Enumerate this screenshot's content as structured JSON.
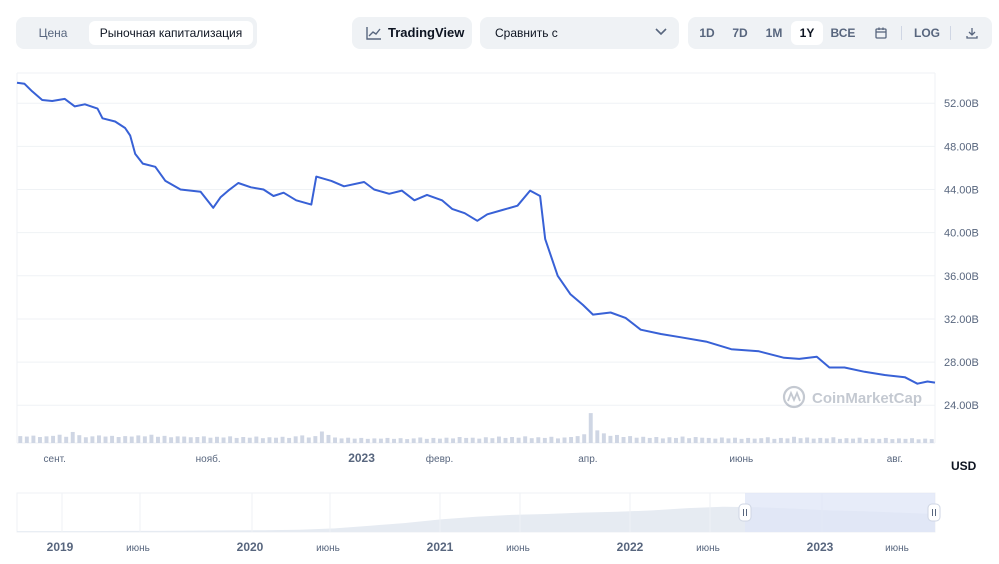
{
  "tabs": {
    "price": "Цена",
    "market_cap": "Рыночная капитализация"
  },
  "toolbar": {
    "tradingview": "TradingView",
    "compare": "Сравнить с",
    "ranges": [
      "1D",
      "7D",
      "1M",
      "1Y",
      "ВСЕ"
    ],
    "active_range": "1Y",
    "log": "LOG"
  },
  "currency": "USD",
  "watermark": "CoinMarketCap",
  "colors": {
    "line": "#3861d6",
    "volume": "#cfd6e4",
    "navigator_fill": "#e6ebf2",
    "navigator_selection": "#dfe6f7"
  },
  "chart_data": {
    "type": "line",
    "title": "",
    "y_unit": "B",
    "y_ticks": [
      "24.00B",
      "28.00B",
      "32.00B",
      "36.00B",
      "40.00B",
      "44.00B",
      "48.00B",
      "52.00B"
    ],
    "ylim": [
      20,
      55
    ],
    "x_ticks": [
      "сент.",
      "нояб.",
      "2023",
      "февр.",
      "апр.",
      "июнь",
      "авг."
    ],
    "x_range": [
      "2022-08-17",
      "2023-08-17"
    ],
    "y_axis_side": "right",
    "grid": true,
    "series": [
      {
        "values": [
          [
            "2022-08-17",
            53.9
          ],
          [
            "2022-08-20",
            53.8
          ],
          [
            "2022-08-23",
            53.1
          ],
          [
            "2022-08-27",
            52.3
          ],
          [
            "2022-08-31",
            52.2
          ],
          [
            "2022-09-05",
            52.4
          ],
          [
            "2022-09-09",
            51.7
          ],
          [
            "2022-09-13",
            51.9
          ],
          [
            "2022-09-18",
            51.5
          ],
          [
            "2022-09-20",
            50.6
          ],
          [
            "2022-09-25",
            50.3
          ],
          [
            "2022-09-29",
            49.7
          ],
          [
            "2022-10-01",
            49.0
          ],
          [
            "2022-10-03",
            47.3
          ],
          [
            "2022-10-06",
            46.4
          ],
          [
            "2022-10-11",
            46.1
          ],
          [
            "2022-10-15",
            44.8
          ],
          [
            "2022-10-21",
            44.0
          ],
          [
            "2022-10-29",
            43.8
          ],
          [
            "2022-11-03",
            42.3
          ],
          [
            "2022-11-06",
            43.3
          ],
          [
            "2022-11-09",
            43.9
          ],
          [
            "2022-11-13",
            44.6
          ],
          [
            "2022-11-18",
            44.2
          ],
          [
            "2022-11-23",
            44.0
          ],
          [
            "2022-11-27",
            43.4
          ],
          [
            "2022-12-01",
            43.7
          ],
          [
            "2022-12-06",
            43.0
          ],
          [
            "2022-12-12",
            42.6
          ],
          [
            "2022-12-14",
            45.2
          ],
          [
            "2022-12-20",
            44.8
          ],
          [
            "2022-12-25",
            44.3
          ],
          [
            "2023-01-02",
            44.7
          ],
          [
            "2023-01-06",
            44.0
          ],
          [
            "2023-01-12",
            43.6
          ],
          [
            "2023-01-17",
            43.9
          ],
          [
            "2023-01-22",
            43.0
          ],
          [
            "2023-01-27",
            43.5
          ],
          [
            "2023-02-02",
            43.0
          ],
          [
            "2023-02-06",
            42.2
          ],
          [
            "2023-02-11",
            41.8
          ],
          [
            "2023-02-16",
            41.1
          ],
          [
            "2023-02-20",
            41.7
          ],
          [
            "2023-02-26",
            42.1
          ],
          [
            "2023-03-04",
            42.5
          ],
          [
            "2023-03-09",
            43.9
          ],
          [
            "2023-03-13",
            43.4
          ],
          [
            "2023-03-15",
            39.4
          ],
          [
            "2023-03-20",
            36.0
          ],
          [
            "2023-03-25",
            34.3
          ],
          [
            "2023-03-30",
            33.3
          ],
          [
            "2023-04-03",
            32.4
          ],
          [
            "2023-04-10",
            32.6
          ],
          [
            "2023-04-16",
            32.1
          ],
          [
            "2023-04-22",
            31.0
          ],
          [
            "2023-04-30",
            30.6
          ],
          [
            "2023-05-08",
            30.3
          ],
          [
            "2023-05-18",
            29.9
          ],
          [
            "2023-05-28",
            29.2
          ],
          [
            "2023-06-08",
            29.0
          ],
          [
            "2023-06-18",
            28.4
          ],
          [
            "2023-06-24",
            28.3
          ],
          [
            "2023-07-01",
            28.5
          ],
          [
            "2023-07-06",
            27.5
          ],
          [
            "2023-07-12",
            27.5
          ],
          [
            "2023-07-20",
            27.1
          ],
          [
            "2023-07-28",
            26.8
          ],
          [
            "2023-08-05",
            26.6
          ],
          [
            "2023-08-10",
            26.0
          ],
          [
            "2023-08-14",
            26.2
          ],
          [
            "2023-08-17",
            26.1
          ]
        ]
      }
    ],
    "volume": [
      3,
      2.8,
      3.2,
      2.6,
      2.9,
      3.1,
      3.6,
      2.7,
      4.8,
      3.4,
      2.5,
      2.9,
      3.3,
      2.8,
      3.1,
      2.6,
      3.0,
      2.8,
      3.3,
      2.9,
      3.6,
      2.7,
      3.1,
      2.5,
      2.9,
      2.8,
      2.5,
      2.6,
      2.9,
      2.3,
      2.7,
      2.4,
      2.9,
      2.2,
      2.6,
      2.3,
      2.8,
      2.1,
      2.5,
      2.3,
      2.7,
      2.2,
      2.9,
      3.3,
      2.4,
      3.0,
      5.0,
      3.5,
      2.4,
      2.0,
      2.3,
      1.9,
      2.2,
      1.8,
      2.0,
      1.9,
      2.2,
      1.8,
      2.1,
      1.7,
      2.0,
      2.4,
      1.8,
      2.2,
      1.9,
      2.3,
      2.0,
      2.6,
      2.2,
      2.3,
      1.9,
      2.5,
      2.1,
      2.8,
      2.2,
      2.6,
      2.3,
      2.9,
      2.1,
      2.5,
      2.2,
      2.7,
      2.0,
      2.4,
      2.6,
      3.0,
      3.8,
      13.0,
      5.5,
      4.2,
      3.1,
      3.5,
      2.6,
      3.0,
      2.3,
      2.7,
      2.2,
      2.6,
      2.0,
      2.5,
      2.2,
      2.8,
      2.1,
      2.6,
      2.3,
      2.2,
      1.9,
      2.4,
      2.0,
      2.3,
      1.8,
      2.2,
      1.9,
      2.1,
      2.5,
      1.8,
      2.2,
      2.0,
      2.7,
      2.1,
      2.4,
      1.9,
      2.2,
      2.0,
      2.5,
      1.8,
      2.1,
      1.9,
      2.3,
      1.7,
      2.0,
      1.8,
      2.2,
      1.7,
      2.0,
      1.8,
      2.1,
      1.6,
      1.9,
      1.7
    ],
    "navigator": {
      "x_ticks": [
        "2019",
        "июнь",
        "2020",
        "июнь",
        "2021",
        "июнь",
        "2022",
        "июнь",
        "2023",
        "июнь"
      ],
      "values": [
        0.2,
        0.2,
        0.2,
        0.25,
        0.25,
        0.3,
        0.35,
        0.4,
        0.5,
        0.8,
        1.4,
        2.0,
        2.8,
        3.4,
        3.8,
        4.0,
        4.3,
        4.5,
        4.8,
        5.3,
        5.6,
        5.5,
        5.2,
        4.8,
        4.6,
        4.3,
        4.0
      ]
    }
  }
}
